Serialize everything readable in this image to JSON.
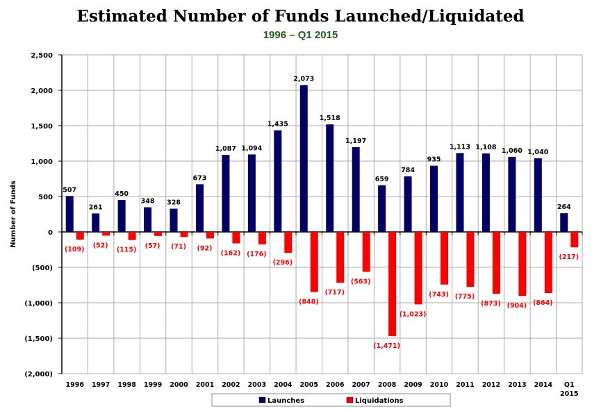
{
  "chart_data": {
    "type": "bar",
    "title": "Estimated Number of Funds Launched/Liquidated",
    "subtitle": "1996 – Q1 2015",
    "xlabel": "",
    "ylabel": "Number of Funds",
    "ylim": [
      -2000,
      2500
    ],
    "yticks": [
      2500,
      2000,
      1500,
      1000,
      500,
      0,
      -500,
      -1000,
      -1500,
      -2000
    ],
    "ytick_labels": [
      "2,500",
      "2,000",
      "1,500",
      "1,000",
      "500",
      "0",
      "(500)",
      "(1,000)",
      "(1,500)",
      "(2,000)"
    ],
    "grid": true,
    "legend_position": "bottom",
    "categories": [
      "1996",
      "1997",
      "1998",
      "1999",
      "2000",
      "2001",
      "2002",
      "2003",
      "2004",
      "2005",
      "2006",
      "2007",
      "2008",
      "2009",
      "2010",
      "2011",
      "2012",
      "2013",
      "2014",
      "Q1 2015"
    ],
    "series": [
      {
        "name": "Launches",
        "color": "#000066",
        "values": [
          507,
          261,
          450,
          348,
          328,
          673,
          1087,
          1094,
          1435,
          2073,
          1518,
          1197,
          659,
          784,
          935,
          1113,
          1108,
          1060,
          1040,
          264
        ],
        "labels": [
          "507",
          "261",
          "450",
          "348",
          "328",
          "673",
          "1,087",
          "1,094",
          "1,435",
          "2,073",
          "1,518",
          "1,197",
          "659",
          "784",
          "935",
          "1,113",
          "1,108",
          "1,060",
          "1,040",
          "264"
        ]
      },
      {
        "name": "Liquidations",
        "color": "#ff0000",
        "values": [
          -109,
          -52,
          -115,
          -57,
          -71,
          -92,
          -162,
          -176,
          -296,
          -848,
          -717,
          -563,
          -1471,
          -1023,
          -743,
          -775,
          -873,
          -904,
          -864,
          -217
        ],
        "labels": [
          "(109)",
          "(52)",
          "(115)",
          "(57)",
          "(71)",
          "(92)",
          "(162)",
          "(176)",
          "(296)",
          "(848)",
          "(717)",
          "(563)",
          "(1,471)",
          "(1,023)",
          "(743)",
          "(775)",
          "(873)",
          "(904)",
          "(864)",
          "(217)"
        ]
      }
    ]
  }
}
